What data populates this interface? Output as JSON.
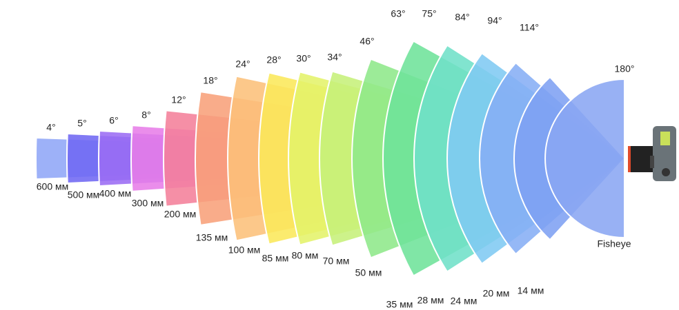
{
  "lenses": [
    {
      "angle": "4°",
      "focal": "600 мм"
    },
    {
      "angle": "5°",
      "focal": "500 мм"
    },
    {
      "angle": "6°",
      "focal": "400 мм"
    },
    {
      "angle": "8°",
      "focal": "300 мм"
    },
    {
      "angle": "12°",
      "focal": "200 мм"
    },
    {
      "angle": "18°",
      "focal": "135 мм"
    },
    {
      "angle": "24°",
      "focal": "100 мм"
    },
    {
      "angle": "28°",
      "focal": "85 мм"
    },
    {
      "angle": "30°",
      "focal": "80 мм"
    },
    {
      "angle": "34°",
      "focal": "70 мм"
    },
    {
      "angle": "46°",
      "focal": "50 мм"
    },
    {
      "angle": "63°",
      "focal": "35 мм"
    },
    {
      "angle": "75°",
      "focal": "28 мм"
    },
    {
      "angle": "84°",
      "focal": "24 мм"
    },
    {
      "angle": "94°",
      "focal": "20 мм"
    },
    {
      "angle": "114°",
      "focal": "14 мм"
    },
    {
      "angle": "180°",
      "focal": "Fisheye"
    }
  ]
}
